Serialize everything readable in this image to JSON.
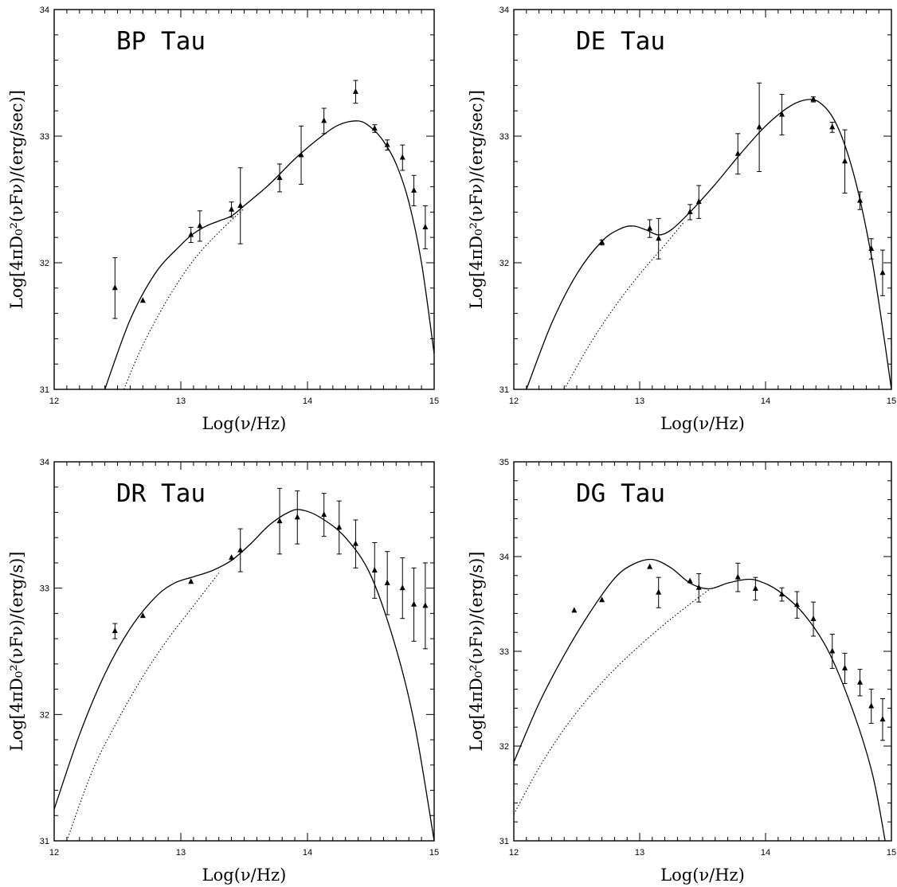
{
  "chart_data": [
    {
      "type": "line",
      "title": "BP Tau",
      "xlabel": "Log(ν/Hz)",
      "ylabel": "Log[4πD₀²(νFν)/(erg/sec)]",
      "xlim": [
        12,
        15
      ],
      "ylim": [
        31,
        34
      ],
      "xticks": [
        "12",
        "13",
        "14",
        "15"
      ],
      "yticks": [
        "31",
        "32",
        "33",
        "34"
      ],
      "observed": {
        "x": [
          12.48,
          12.7,
          13.08,
          13.15,
          13.4,
          13.47,
          13.78,
          13.95,
          14.13,
          14.38,
          14.53,
          14.63,
          14.75,
          14.84,
          14.93
        ],
        "y": [
          31.8,
          31.7,
          32.22,
          32.29,
          32.42,
          32.45,
          32.67,
          32.85,
          33.12,
          33.35,
          33.06,
          32.93,
          32.83,
          32.57,
          32.28
        ],
        "err": [
          0.24,
          0.0,
          0.06,
          0.12,
          0.06,
          0.3,
          0.11,
          0.23,
          0.1,
          0.09,
          0.03,
          0.04,
          0.1,
          0.12,
          0.17
        ]
      },
      "series": [
        {
          "x": [
            12.4,
            12.6,
            12.8,
            13.0,
            13.1,
            13.2,
            13.3,
            13.4,
            13.5,
            13.7,
            13.9,
            14.1,
            14.25,
            14.4,
            14.5,
            14.6,
            14.7,
            14.8,
            14.9,
            15.0
          ],
          "y": [
            31.0,
            31.55,
            31.92,
            32.14,
            32.23,
            32.29,
            32.33,
            32.37,
            32.45,
            32.62,
            32.82,
            32.99,
            33.09,
            33.12,
            33.07,
            32.96,
            32.78,
            32.48,
            32.0,
            31.28
          ]
        },
        {
          "x": [
            12.55,
            12.7,
            12.9,
            13.1,
            13.3,
            13.5
          ],
          "y": [
            31.0,
            31.35,
            31.72,
            32.02,
            32.24,
            32.43
          ]
        }
      ]
    },
    {
      "type": "line",
      "title": "DE Tau",
      "xlabel": "Log(ν/Hz)",
      "ylabel": "Log[4πD₀²(νFν)/(erg/sec)]",
      "xlim": [
        12,
        15
      ],
      "ylim": [
        31,
        34
      ],
      "xticks": [
        "12",
        "13",
        "14",
        "15"
      ],
      "yticks": [
        "31",
        "32",
        "33",
        "34"
      ],
      "observed": {
        "x": [
          12.7,
          13.08,
          13.15,
          13.4,
          13.47,
          13.78,
          13.95,
          14.13,
          14.38,
          14.53,
          14.63,
          14.75,
          14.84,
          14.93
        ],
        "y": [
          32.16,
          32.27,
          32.19,
          32.4,
          32.48,
          32.86,
          33.07,
          33.17,
          33.29,
          33.07,
          32.8,
          32.49,
          32.11,
          31.92
        ],
        "err": [
          0.02,
          0.07,
          0.16,
          0.06,
          0.13,
          0.16,
          0.35,
          0.16,
          0.02,
          0.04,
          0.25,
          0.07,
          0.08,
          0.18
        ]
      },
      "series": [
        {
          "x": [
            12.1,
            12.3,
            12.5,
            12.7,
            12.85,
            12.95,
            13.05,
            13.15,
            13.25,
            13.4,
            13.6,
            13.8,
            14.0,
            14.2,
            14.35,
            14.45,
            14.55,
            14.65,
            14.75,
            14.85,
            14.95,
            15.0
          ],
          "y": [
            31.0,
            31.52,
            31.91,
            32.17,
            32.27,
            32.29,
            32.26,
            32.22,
            32.26,
            32.4,
            32.62,
            32.86,
            33.08,
            33.24,
            33.29,
            33.25,
            33.12,
            32.87,
            32.5,
            32.0,
            31.35,
            31.0
          ]
        },
        {
          "x": [
            12.4,
            12.6,
            12.8,
            13.0,
            13.2,
            13.35
          ],
          "y": [
            31.0,
            31.35,
            31.65,
            31.91,
            32.14,
            32.32
          ]
        }
      ]
    },
    {
      "type": "line",
      "title": "DR Tau",
      "xlabel": "Log(ν/Hz)",
      "ylabel": "Log[4πD₀²(νFν)/(erg/s)]",
      "xlim": [
        12,
        15
      ],
      "ylim": [
        31,
        34
      ],
      "xticks": [
        "12",
        "13",
        "14",
        "15"
      ],
      "yticks": [
        "31",
        "32",
        "33",
        "34"
      ],
      "observed": {
        "x": [
          12.48,
          12.7,
          13.08,
          13.4,
          13.47,
          13.78,
          13.92,
          14.13,
          14.25,
          14.38,
          14.53,
          14.63,
          14.75,
          14.84,
          14.93
        ],
        "y": [
          32.66,
          32.78,
          33.05,
          33.24,
          33.3,
          33.53,
          33.56,
          33.58,
          33.48,
          33.35,
          33.14,
          33.04,
          33.0,
          32.87,
          32.86
        ],
        "err": [
          0.06,
          0.0,
          0.0,
          0.0,
          0.17,
          0.26,
          0.21,
          0.17,
          0.21,
          0.19,
          0.22,
          0.25,
          0.24,
          0.29,
          0.34
        ]
      },
      "series": [
        {
          "x": [
            12.0,
            12.2,
            12.4,
            12.6,
            12.8,
            12.95,
            13.1,
            13.25,
            13.4,
            13.55,
            13.7,
            13.85,
            13.95,
            14.1,
            14.3,
            14.5,
            14.7,
            14.85,
            15.0
          ],
          "y": [
            31.25,
            31.84,
            32.32,
            32.68,
            32.93,
            33.04,
            33.09,
            33.14,
            33.22,
            33.35,
            33.5,
            33.6,
            33.62,
            33.56,
            33.4,
            33.1,
            32.52,
            31.9,
            31.0
          ]
        },
        {
          "x": [
            12.1,
            12.3,
            12.5,
            12.7,
            12.9,
            13.1,
            13.3
          ],
          "y": [
            31.0,
            31.55,
            31.95,
            32.3,
            32.6,
            32.86,
            33.12
          ]
        }
      ]
    },
    {
      "type": "line",
      "title": "DG Tau",
      "xlabel": "Log(ν/Hz)",
      "ylabel": "Log[4πD₀²(νFν)/(erg/s)]",
      "xlim": [
        12,
        15
      ],
      "ylim": [
        31,
        35
      ],
      "xticks": [
        "12",
        "13",
        "14",
        "15"
      ],
      "yticks": [
        "31",
        "32",
        "33",
        "34",
        "35"
      ],
      "observed": {
        "x": [
          12.48,
          12.7,
          13.08,
          13.15,
          13.4,
          13.47,
          13.78,
          13.92,
          14.13,
          14.25,
          14.38,
          14.53,
          14.63,
          14.75,
          14.84,
          14.93
        ],
        "y": [
          33.43,
          33.54,
          33.89,
          33.62,
          33.74,
          33.67,
          33.78,
          33.66,
          33.6,
          33.49,
          33.34,
          33.0,
          32.82,
          32.67,
          32.42,
          32.28
        ],
        "err": [
          0.0,
          0.0,
          0.0,
          0.16,
          0.0,
          0.15,
          0.15,
          0.12,
          0.07,
          0.14,
          0.18,
          0.18,
          0.16,
          0.14,
          0.18,
          0.22
        ]
      },
      "series": [
        {
          "x": [
            12.0,
            12.2,
            12.4,
            12.6,
            12.8,
            12.95,
            13.1,
            13.25,
            13.4,
            13.55,
            13.7,
            13.85,
            13.95,
            14.1,
            14.3,
            14.5,
            14.7,
            14.85,
            14.95
          ],
          "y": [
            31.83,
            32.45,
            32.96,
            33.4,
            33.77,
            33.92,
            33.97,
            33.88,
            33.72,
            33.66,
            33.72,
            33.76,
            33.74,
            33.64,
            33.4,
            33.0,
            32.35,
            31.7,
            31.0
          ]
        },
        {
          "x": [
            12.0,
            12.2,
            12.4,
            12.6,
            12.8,
            13.0,
            13.2,
            13.4,
            13.55
          ],
          "y": [
            31.28,
            31.77,
            32.18,
            32.52,
            32.81,
            33.06,
            33.29,
            33.5,
            33.65
          ]
        }
      ]
    }
  ]
}
